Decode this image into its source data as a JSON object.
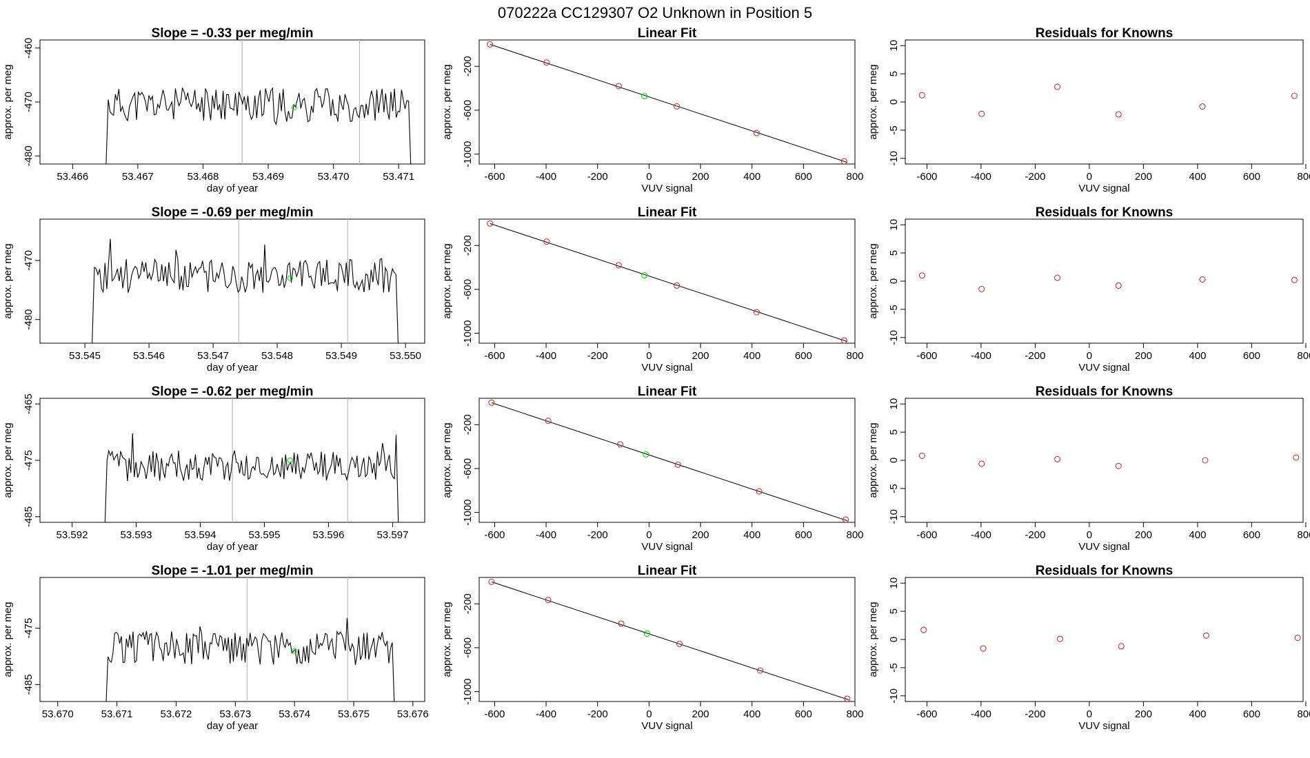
{
  "page_title": "070222a      CC129307   O2 Unknown in Position  5",
  "colors": {
    "line": "#000000",
    "known": "#cd3333",
    "unknown": "#00e000",
    "vline": "#bebebe"
  },
  "chart_data": [
    {
      "type": "line",
      "title": "Slope =  -0.33  per meg/min",
      "xlabel": "day of year",
      "ylabel": "approx. per meg",
      "xlim": [
        53.4655,
        53.4714
      ],
      "ylim": [
        -481.5,
        -458.5
      ],
      "xticks": [
        53.466,
        53.467,
        53.468,
        53.469,
        53.47,
        53.471
      ],
      "xtick_labels": [
        "53.466",
        "53.467",
        "53.468",
        "53.469",
        "53.470",
        "53.471"
      ],
      "yticks": [
        -460,
        -470,
        -480
      ],
      "ytick_labels": [
        "-460",
        "-470",
        "-480"
      ],
      "t_start": 53.4665,
      "t_end": 53.4712,
      "base": -470.5,
      "noise": 3.2,
      "seed": 11,
      "vlines": [
        53.4686,
        53.4704
      ],
      "unknown_point": [
        53.4694,
        -471
      ]
    },
    {
      "type": "scatter",
      "title": "Linear Fit",
      "xlabel": "VUV signal",
      "ylabel": "approx. per meg",
      "xlim": [
        -660,
        800
      ],
      "ylim": [
        -1090,
        40
      ],
      "xticks": [
        -600,
        -400,
        -200,
        0,
        200,
        400,
        600,
        800
      ],
      "xtick_labels": [
        "-600",
        "-400",
        "-200",
        "0",
        "200",
        "400",
        "600",
        "800"
      ],
      "yticks": [
        -200,
        -600,
        -1000
      ],
      "ytick_labels": [
        "-200",
        "-600",
        "-1000"
      ],
      "knowns": [
        [
          -618,
          0
        ],
        [
          -398,
          -165
        ],
        [
          -118,
          -380
        ],
        [
          108,
          -565
        ],
        [
          418,
          -808
        ],
        [
          758,
          -1065
        ]
      ],
      "unknown": [
        -18,
        -472
      ],
      "fit": [
        [
          -618,
          0
        ],
        [
          770,
          -1075
        ]
      ]
    },
    {
      "type": "scatter",
      "title": "Residuals for Knowns",
      "xlabel": "VUV signal",
      "ylabel": "approx. per meg",
      "xlim": [
        -680,
        790
      ],
      "ylim": [
        -11,
        11
      ],
      "xticks": [
        -600,
        -400,
        -200,
        0,
        200,
        400,
        600,
        800
      ],
      "xtick_labels": [
        "-600",
        "-400",
        "-200",
        "0",
        "200",
        "400",
        "600",
        "800"
      ],
      "yticks": [
        10,
        5,
        0,
        -5,
        -10
      ],
      "ytick_labels": [
        "10",
        "5",
        "0",
        "-5",
        "-10"
      ],
      "points": [
        [
          -618,
          1.2
        ],
        [
          -398,
          -2.1
        ],
        [
          -118,
          2.7
        ],
        [
          108,
          -2.2
        ],
        [
          418,
          -0.8
        ],
        [
          758,
          1.1
        ]
      ]
    },
    {
      "type": "line",
      "title": "Slope =  -0.69  per meg/min",
      "xlabel": "day of year",
      "ylabel": "approx. per meg",
      "xlim": [
        53.5443,
        53.5503
      ],
      "ylim": [
        -484,
        -463
      ],
      "xticks": [
        53.545,
        53.546,
        53.547,
        53.548,
        53.549,
        53.55
      ],
      "xtick_labels": [
        "53.545",
        "53.546",
        "53.547",
        "53.548",
        "53.549",
        "53.550"
      ],
      "yticks": [
        -470,
        -480
      ],
      "ytick_labels": [
        "-470",
        "-480"
      ],
      "t_start": 53.5451,
      "t_end": 53.5499,
      "base": -472.5,
      "noise": 3.0,
      "seed": 23,
      "vlines": [
        53.5474,
        53.5491
      ],
      "unknown_point": [
        53.5482,
        -473
      ]
    },
    {
      "type": "scatter",
      "title": "Linear Fit",
      "xlabel": "VUV signal",
      "ylabel": "approx. per meg",
      "xlim": [
        -660,
        800
      ],
      "ylim": [
        -1090,
        40
      ],
      "xticks": [
        -600,
        -400,
        -200,
        0,
        200,
        400,
        600,
        800
      ],
      "xtick_labels": [
        "-600",
        "-400",
        "-200",
        "0",
        "200",
        "400",
        "600",
        "800"
      ],
      "yticks": [
        -200,
        -600,
        -1000
      ],
      "ytick_labels": [
        "-200",
        "-600",
        "-1000"
      ],
      "knowns": [
        [
          -618,
          0
        ],
        [
          -398,
          -165
        ],
        [
          -118,
          -380
        ],
        [
          108,
          -565
        ],
        [
          418,
          -808
        ],
        [
          758,
          -1065
        ]
      ],
      "unknown": [
        -18,
        -472
      ],
      "fit": [
        [
          -618,
          0
        ],
        [
          770,
          -1075
        ]
      ]
    },
    {
      "type": "scatter",
      "title": "Residuals for Knowns",
      "xlabel": "VUV signal",
      "ylabel": "approx. per meg",
      "xlim": [
        -680,
        790
      ],
      "ylim": [
        -11,
        11
      ],
      "xticks": [
        -600,
        -400,
        -200,
        0,
        200,
        400,
        600,
        800
      ],
      "xtick_labels": [
        "-600",
        "-400",
        "-200",
        "0",
        "200",
        "400",
        "600",
        "800"
      ],
      "yticks": [
        10,
        5,
        0,
        -5,
        -10
      ],
      "ytick_labels": [
        "10",
        "5",
        "0",
        "-5",
        "-10"
      ],
      "points": [
        [
          -618,
          1.0
        ],
        [
          -398,
          -1.4
        ],
        [
          -118,
          0.6
        ],
        [
          108,
          -0.8
        ],
        [
          418,
          0.3
        ],
        [
          758,
          0.2
        ]
      ]
    },
    {
      "type": "line",
      "title": "Slope =  -0.62  per meg/min",
      "xlabel": "day of year",
      "ylabel": "approx. per meg",
      "xlim": [
        53.5915,
        53.5975
      ],
      "ylim": [
        -486,
        -464
      ],
      "xticks": [
        53.592,
        53.593,
        53.594,
        53.595,
        53.596,
        53.597
      ],
      "xtick_labels": [
        "53.592",
        "53.593",
        "53.594",
        "53.595",
        "53.596",
        "53.597"
      ],
      "yticks": [
        -465,
        -475,
        -485
      ],
      "ytick_labels": [
        "-465",
        "-475",
        "-485"
      ],
      "t_start": 53.5925,
      "t_end": 53.5971,
      "base": -476,
      "noise": 2.8,
      "seed": 37,
      "vlines": [
        53.5945,
        53.5963
      ],
      "unknown_point": [
        53.5954,
        -475
      ]
    },
    {
      "type": "scatter",
      "title": "Linear Fit",
      "xlabel": "VUV signal",
      "ylabel": "approx. per meg",
      "xlim": [
        -660,
        800
      ],
      "ylim": [
        -1090,
        40
      ],
      "xticks": [
        -600,
        -400,
        -200,
        0,
        200,
        400,
        600,
        800
      ],
      "xtick_labels": [
        "-600",
        "-400",
        "-200",
        "0",
        "200",
        "400",
        "600",
        "800"
      ],
      "yticks": [
        -200,
        -600,
        -1000
      ],
      "ytick_labels": [
        "-200",
        "-600",
        "-1000"
      ],
      "knowns": [
        [
          -612,
          0
        ],
        [
          -392,
          -165
        ],
        [
          -112,
          -380
        ],
        [
          112,
          -565
        ],
        [
          428,
          -808
        ],
        [
          764,
          -1065
        ]
      ],
      "unknown": [
        -12,
        -472
      ],
      "fit": [
        [
          -612,
          0
        ],
        [
          770,
          -1075
        ]
      ]
    },
    {
      "type": "scatter",
      "title": "Residuals for Knowns",
      "xlabel": "VUV signal",
      "ylabel": "approx. per meg",
      "xlim": [
        -680,
        790
      ],
      "ylim": [
        -11,
        11
      ],
      "xticks": [
        -600,
        -400,
        -200,
        0,
        200,
        400,
        600,
        800
      ],
      "xtick_labels": [
        "-600",
        "-400",
        "-200",
        "0",
        "200",
        "400",
        "600",
        "800"
      ],
      "points": [
        [
          -618,
          0.8
        ],
        [
          -398,
          -0.6
        ],
        [
          -118,
          0.2
        ],
        [
          108,
          -1.0
        ],
        [
          428,
          0.0
        ],
        [
          764,
          0.5
        ]
      ],
      "yticks": [
        10,
        5,
        0,
        -5,
        -10
      ],
      "ytick_labels": [
        "10",
        "5",
        "0",
        "-5",
        "-10"
      ]
    },
    {
      "type": "line",
      "title": "Slope =  -1.01  per meg/min",
      "xlabel": "day of year",
      "ylabel": "approx. per meg",
      "xlim": [
        53.6697,
        53.6762
      ],
      "ylim": [
        -488,
        -466
      ],
      "xticks": [
        53.67,
        53.671,
        53.672,
        53.673,
        53.674,
        53.675,
        53.676
      ],
      "xtick_labels": [
        "53.670",
        "53.671",
        "53.672",
        "53.673",
        "53.674",
        "53.675",
        "53.676"
      ],
      "yticks": [
        -475,
        -485
      ],
      "ytick_labels": [
        "-475",
        "-485"
      ],
      "t_start": 53.6708,
      "t_end": 53.6757,
      "base": -478.5,
      "noise": 3.0,
      "seed": 51,
      "vlines": [
        53.6732,
        53.6749
      ],
      "unknown_point": [
        53.674,
        -479
      ]
    },
    {
      "type": "scatter",
      "title": "Linear Fit",
      "xlabel": "VUV signal",
      "ylabel": "approx. per meg",
      "xlim": [
        -660,
        800
      ],
      "ylim": [
        -1090,
        40
      ],
      "xticks": [
        -600,
        -400,
        -200,
        0,
        200,
        400,
        600,
        800
      ],
      "xtick_labels": [
        "-600",
        "-400",
        "-200",
        "0",
        "200",
        "400",
        "600",
        "800"
      ],
      "yticks": [
        -200,
        -600,
        -1000
      ],
      "ytick_labels": [
        "-200",
        "-600",
        "-1000"
      ],
      "knowns": [
        [
          -612,
          0
        ],
        [
          -392,
          -165
        ],
        [
          -108,
          -380
        ],
        [
          118,
          -565
        ],
        [
          432,
          -808
        ],
        [
          770,
          -1065
        ]
      ],
      "unknown": [
        -8,
        -472
      ],
      "fit": [
        [
          -612,
          0
        ],
        [
          776,
          -1075
        ]
      ]
    },
    {
      "type": "scatter",
      "title": "Residuals for Knowns",
      "xlabel": "VUV signal",
      "ylabel": "approx. per meg",
      "xlim": [
        -680,
        790
      ],
      "ylim": [
        -11,
        11
      ],
      "xticks": [
        -600,
        -400,
        -200,
        0,
        200,
        400,
        600,
        800
      ],
      "xtick_labels": [
        "-600",
        "-400",
        "-200",
        "0",
        "200",
        "400",
        "600",
        "800"
      ],
      "yticks": [
        10,
        5,
        0,
        -5,
        -10
      ],
      "ytick_labels": [
        "10",
        "5",
        "0",
        "-5",
        "-10"
      ],
      "points": [
        [
          -612,
          1.7
        ],
        [
          -392,
          -1.6
        ],
        [
          -108,
          0.1
        ],
        [
          118,
          -1.2
        ],
        [
          432,
          0.7
        ],
        [
          770,
          0.3
        ]
      ]
    }
  ]
}
